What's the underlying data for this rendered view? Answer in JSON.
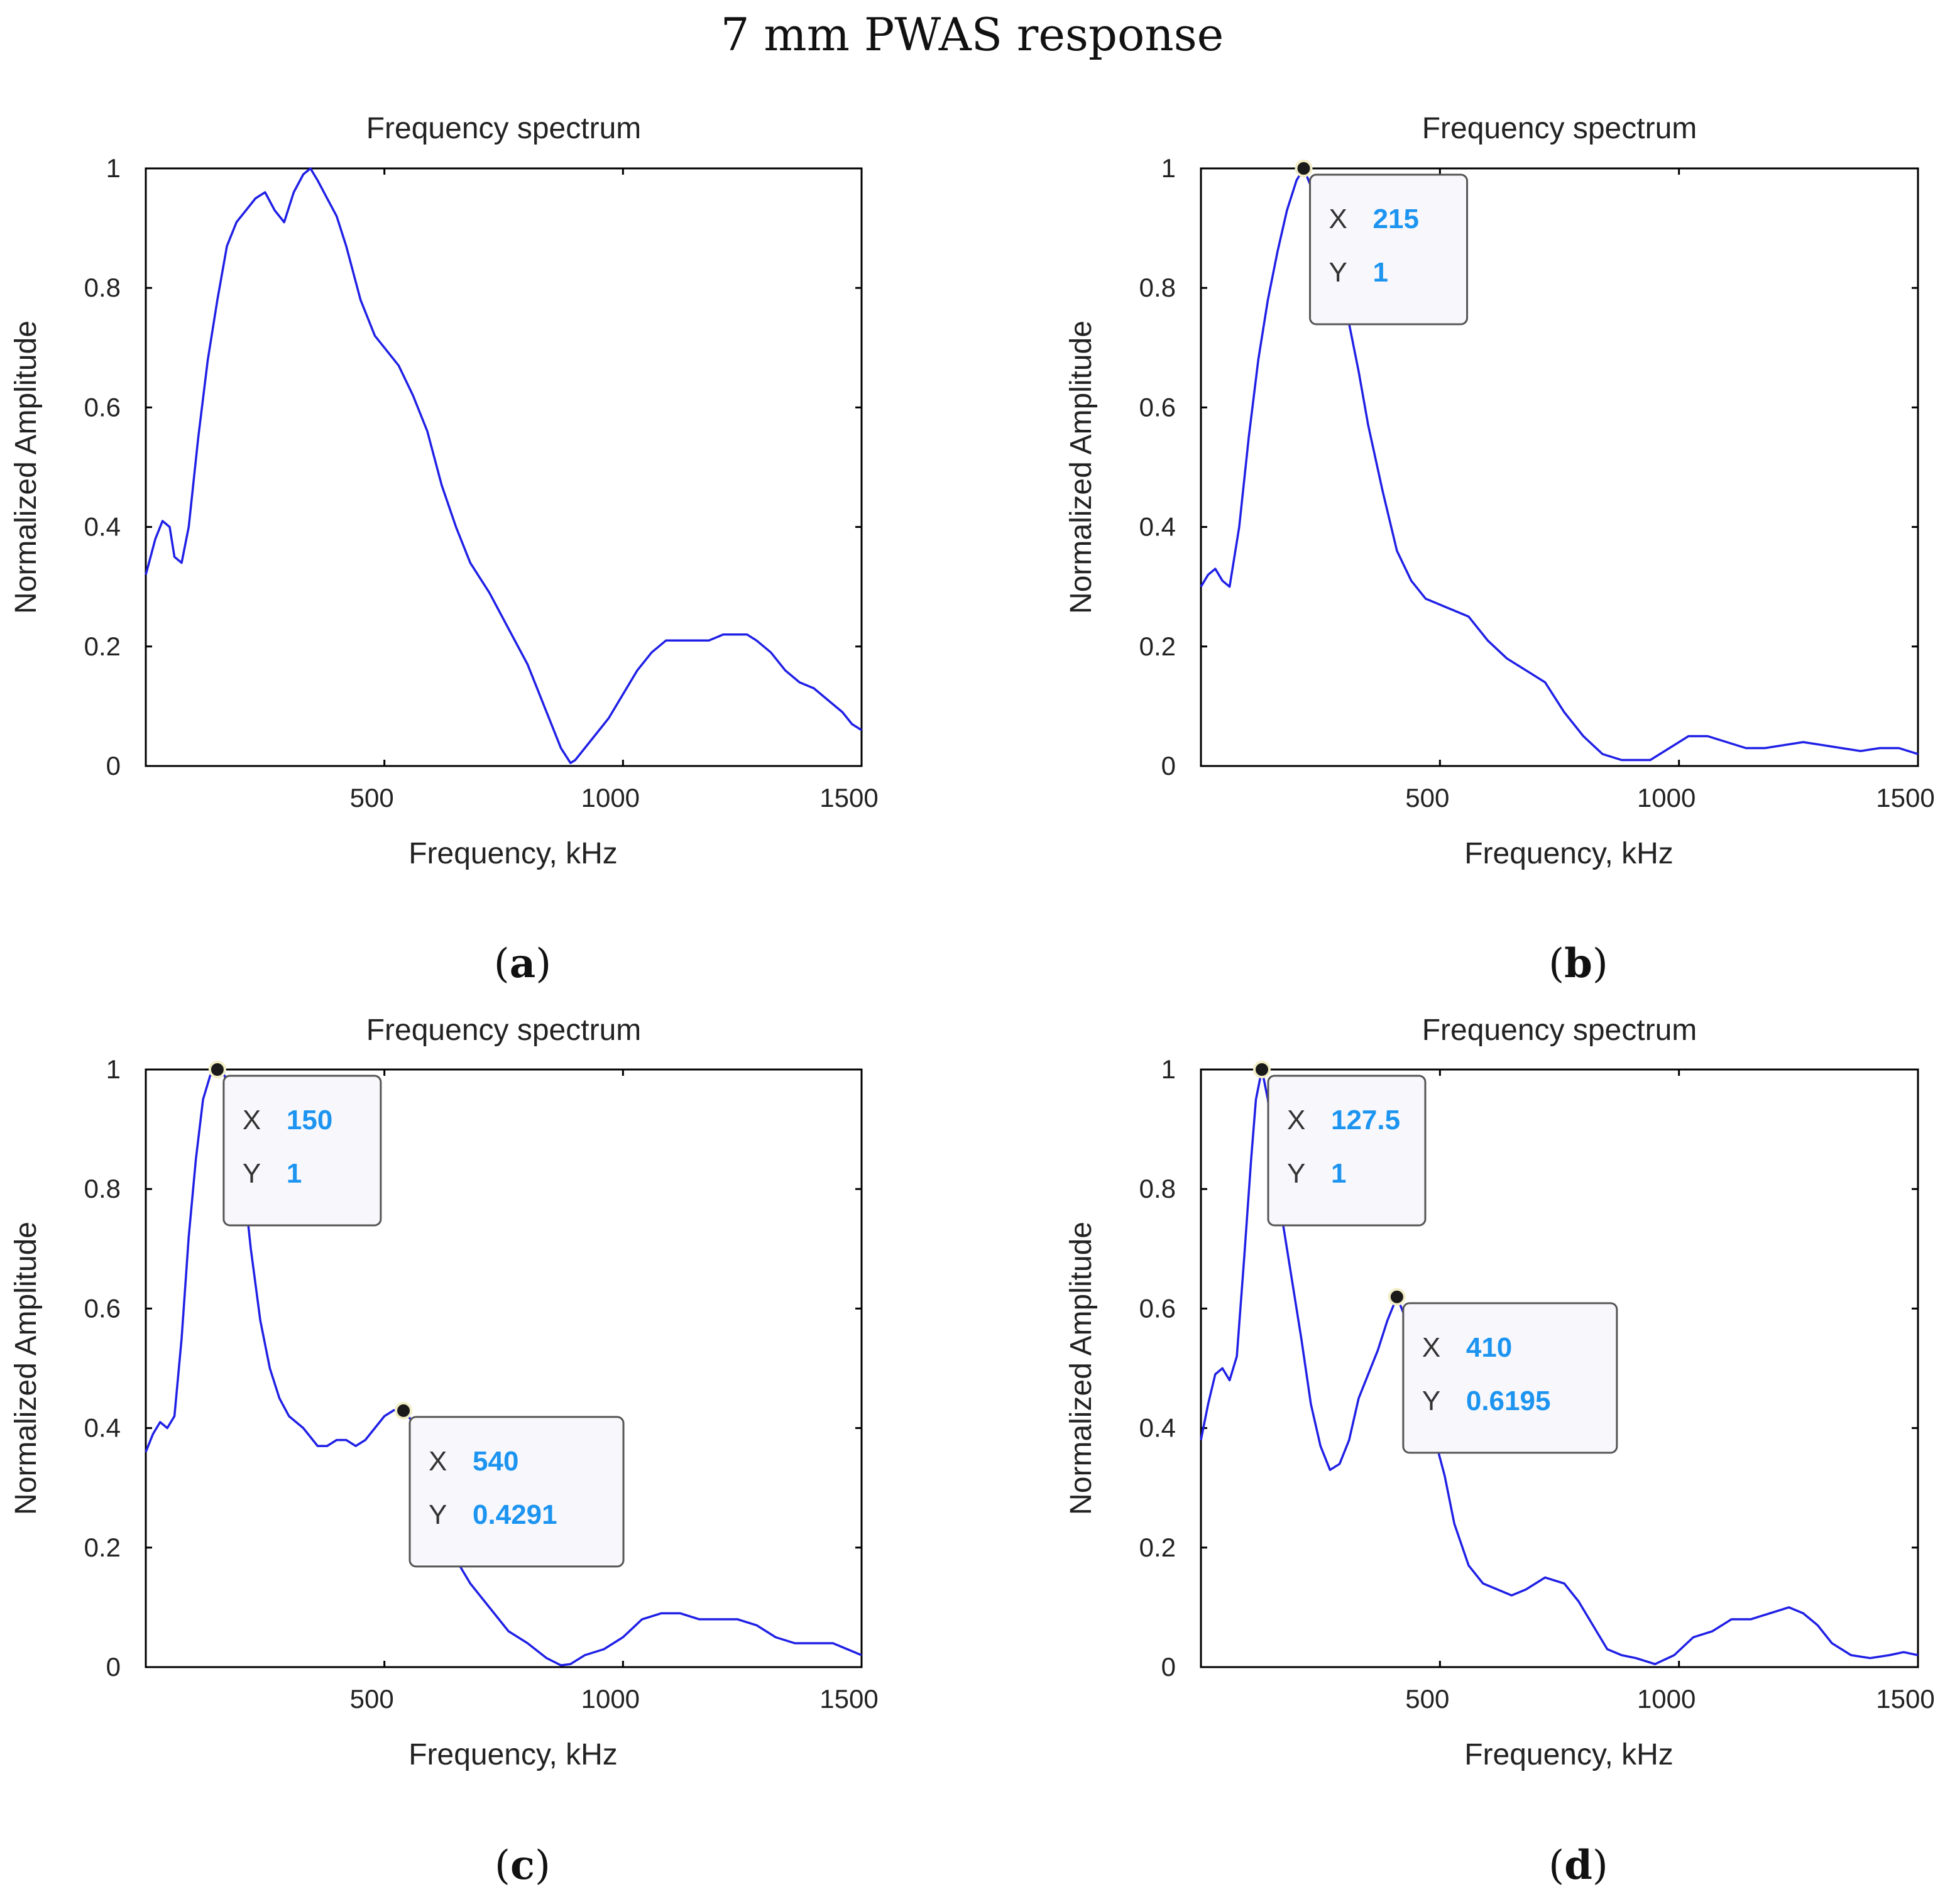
{
  "figure_title": "7 mm PWAS response",
  "chart_data": [
    {
      "type": "line",
      "panel_label_open": "(",
      "panel_label_letter": "a",
      "panel_label_close": ")",
      "title": "Frequency spectrum",
      "xlabel": "Frequency, kHz",
      "ylabel": "Normalized Amplitude",
      "xlim": [
        0,
        1500
      ],
      "ylim": [
        0,
        1
      ],
      "xticks": [
        500,
        1000,
        1500
      ],
      "yticks": [
        0,
        0.2,
        0.4,
        0.6,
        0.8,
        1
      ],
      "line_color": "#1f1fe6",
      "series": [
        {
          "name": "spectrum",
          "x": [
            0,
            20,
            35,
            50,
            60,
            75,
            90,
            110,
            130,
            150,
            170,
            190,
            210,
            230,
            250,
            270,
            290,
            310,
            330,
            345,
            360,
            380,
            400,
            420,
            450,
            480,
            500,
            530,
            560,
            590,
            620,
            650,
            680,
            720,
            760,
            800,
            840,
            870,
            890,
            900,
            930,
            970,
            1000,
            1030,
            1060,
            1090,
            1120,
            1150,
            1180,
            1210,
            1240,
            1260,
            1280,
            1310,
            1340,
            1370,
            1400,
            1430,
            1460,
            1480,
            1500
          ],
          "y": [
            0.32,
            0.38,
            0.41,
            0.4,
            0.35,
            0.34,
            0.4,
            0.55,
            0.68,
            0.78,
            0.87,
            0.91,
            0.93,
            0.95,
            0.96,
            0.93,
            0.91,
            0.96,
            0.99,
            1.0,
            0.98,
            0.95,
            0.92,
            0.87,
            0.78,
            0.72,
            0.7,
            0.67,
            0.62,
            0.56,
            0.47,
            0.4,
            0.34,
            0.29,
            0.23,
            0.17,
            0.09,
            0.03,
            0.005,
            0.01,
            0.04,
            0.08,
            0.12,
            0.16,
            0.19,
            0.21,
            0.21,
            0.21,
            0.21,
            0.22,
            0.22,
            0.22,
            0.21,
            0.19,
            0.16,
            0.14,
            0.13,
            0.11,
            0.09,
            0.07,
            0.06
          ]
        }
      ],
      "datatips": []
    },
    {
      "type": "line",
      "panel_label_open": "(",
      "panel_label_letter": "b",
      "panel_label_close": ")",
      "title": "Frequency spectrum",
      "xlabel": "Frequency, kHz",
      "ylabel": "Normalized Amplitude",
      "xlim": [
        0,
        1500
      ],
      "ylim": [
        0,
        1
      ],
      "xticks": [
        500,
        1000,
        1500
      ],
      "yticks": [
        0,
        0.2,
        0.4,
        0.6,
        0.8,
        1
      ],
      "line_color": "#1f1fe6",
      "series": [
        {
          "name": "spectrum",
          "x": [
            0,
            15,
            30,
            45,
            60,
            80,
            100,
            120,
            140,
            160,
            180,
            200,
            215,
            230,
            250,
            270,
            290,
            310,
            330,
            350,
            380,
            410,
            440,
            470,
            500,
            530,
            560,
            600,
            640,
            680,
            720,
            760,
            800,
            840,
            880,
            910,
            940,
            980,
            1020,
            1060,
            1100,
            1140,
            1180,
            1220,
            1260,
            1300,
            1340,
            1380,
            1420,
            1460,
            1500
          ],
          "y": [
            0.3,
            0.32,
            0.33,
            0.31,
            0.3,
            0.4,
            0.55,
            0.68,
            0.78,
            0.86,
            0.93,
            0.98,
            1.0,
            0.97,
            0.9,
            0.84,
            0.79,
            0.74,
            0.66,
            0.57,
            0.46,
            0.36,
            0.31,
            0.28,
            0.27,
            0.26,
            0.25,
            0.21,
            0.18,
            0.16,
            0.14,
            0.09,
            0.05,
            0.02,
            0.01,
            0.01,
            0.01,
            0.03,
            0.05,
            0.05,
            0.04,
            0.03,
            0.03,
            0.035,
            0.04,
            0.035,
            0.03,
            0.025,
            0.03,
            0.03,
            0.02
          ]
        }
      ],
      "datatips": [
        {
          "x": 215,
          "y": 1,
          "x_label": "X",
          "x_text": "215",
          "y_label": "Y",
          "y_text": "1"
        }
      ]
    },
    {
      "type": "line",
      "panel_label_open": "(",
      "panel_label_letter": "c",
      "panel_label_close": ")",
      "title": "Frequency spectrum",
      "xlabel": "Frequency, kHz",
      "ylabel": "Normalized Amplitude",
      "xlim": [
        0,
        1500
      ],
      "ylim": [
        0,
        1
      ],
      "xticks": [
        500,
        1000,
        1500
      ],
      "yticks": [
        0,
        0.2,
        0.4,
        0.6,
        0.8,
        1
      ],
      "line_color": "#1f1fe6",
      "series": [
        {
          "name": "spectrum",
          "x": [
            0,
            15,
            30,
            45,
            60,
            75,
            90,
            105,
            120,
            135,
            150,
            165,
            180,
            200,
            220,
            240,
            260,
            280,
            300,
            330,
            360,
            380,
            400,
            420,
            440,
            460,
            480,
            500,
            520,
            540,
            560,
            580,
            600,
            620,
            650,
            680,
            720,
            760,
            800,
            840,
            870,
            890,
            920,
            960,
            1000,
            1040,
            1080,
            1120,
            1160,
            1200,
            1240,
            1280,
            1320,
            1360,
            1400,
            1440,
            1470,
            1500
          ],
          "y": [
            0.36,
            0.39,
            0.41,
            0.4,
            0.42,
            0.55,
            0.72,
            0.85,
            0.95,
            0.99,
            1.0,
            0.99,
            0.95,
            0.85,
            0.7,
            0.58,
            0.5,
            0.45,
            0.42,
            0.4,
            0.37,
            0.37,
            0.38,
            0.38,
            0.37,
            0.38,
            0.4,
            0.42,
            0.43,
            0.429,
            0.41,
            0.37,
            0.31,
            0.24,
            0.18,
            0.14,
            0.1,
            0.06,
            0.04,
            0.015,
            0.003,
            0.005,
            0.02,
            0.03,
            0.05,
            0.08,
            0.09,
            0.09,
            0.08,
            0.08,
            0.08,
            0.07,
            0.05,
            0.04,
            0.04,
            0.04,
            0.03,
            0.02
          ]
        }
      ],
      "datatips": [
        {
          "x": 150,
          "y": 1,
          "x_label": "X",
          "x_text": "150",
          "y_label": "Y",
          "y_text": "1"
        },
        {
          "x": 540,
          "y": 0.4291,
          "x_label": "X",
          "x_text": "540",
          "y_label": "Y",
          "y_text": "0.4291"
        }
      ]
    },
    {
      "type": "line",
      "panel_label_open": "(",
      "panel_label_letter": "d",
      "panel_label_close": ")",
      "title": "Frequency spectrum",
      "xlabel": "Frequency, kHz",
      "ylabel": "Normalized Amplitude",
      "xlim": [
        0,
        1500
      ],
      "ylim": [
        0,
        1
      ],
      "xticks": [
        500,
        1000,
        1500
      ],
      "yticks": [
        0,
        0.2,
        0.4,
        0.6,
        0.8,
        1
      ],
      "line_color": "#1f1fe6",
      "series": [
        {
          "name": "spectrum",
          "x": [
            0,
            15,
            30,
            45,
            60,
            75,
            90,
            105,
            115,
            127.5,
            140,
            155,
            170,
            190,
            210,
            230,
            250,
            270,
            290,
            310,
            330,
            350,
            370,
            390,
            410,
            430,
            450,
            470,
            490,
            510,
            530,
            560,
            590,
            620,
            650,
            680,
            720,
            760,
            790,
            820,
            850,
            880,
            910,
            950,
            990,
            1030,
            1070,
            1110,
            1150,
            1190,
            1230,
            1260,
            1290,
            1320,
            1360,
            1400,
            1440,
            1470,
            1500
          ],
          "y": [
            0.38,
            0.44,
            0.49,
            0.5,
            0.48,
            0.52,
            0.68,
            0.85,
            0.95,
            1.0,
            0.95,
            0.85,
            0.75,
            0.65,
            0.55,
            0.44,
            0.37,
            0.33,
            0.34,
            0.38,
            0.45,
            0.49,
            0.53,
            0.58,
            0.6195,
            0.58,
            0.52,
            0.45,
            0.38,
            0.32,
            0.24,
            0.17,
            0.14,
            0.13,
            0.12,
            0.13,
            0.15,
            0.14,
            0.11,
            0.07,
            0.03,
            0.02,
            0.015,
            0.005,
            0.02,
            0.05,
            0.06,
            0.08,
            0.08,
            0.09,
            0.1,
            0.09,
            0.07,
            0.04,
            0.02,
            0.015,
            0.02,
            0.025,
            0.02
          ]
        }
      ],
      "datatips": [
        {
          "x": 127.5,
          "y": 1,
          "x_label": "X",
          "x_text": "127.5",
          "y_label": "Y",
          "y_text": "1"
        },
        {
          "x": 410,
          "y": 0.6195,
          "x_label": "X",
          "x_text": "410",
          "y_label": "Y",
          "y_text": "0.6195"
        }
      ]
    }
  ]
}
